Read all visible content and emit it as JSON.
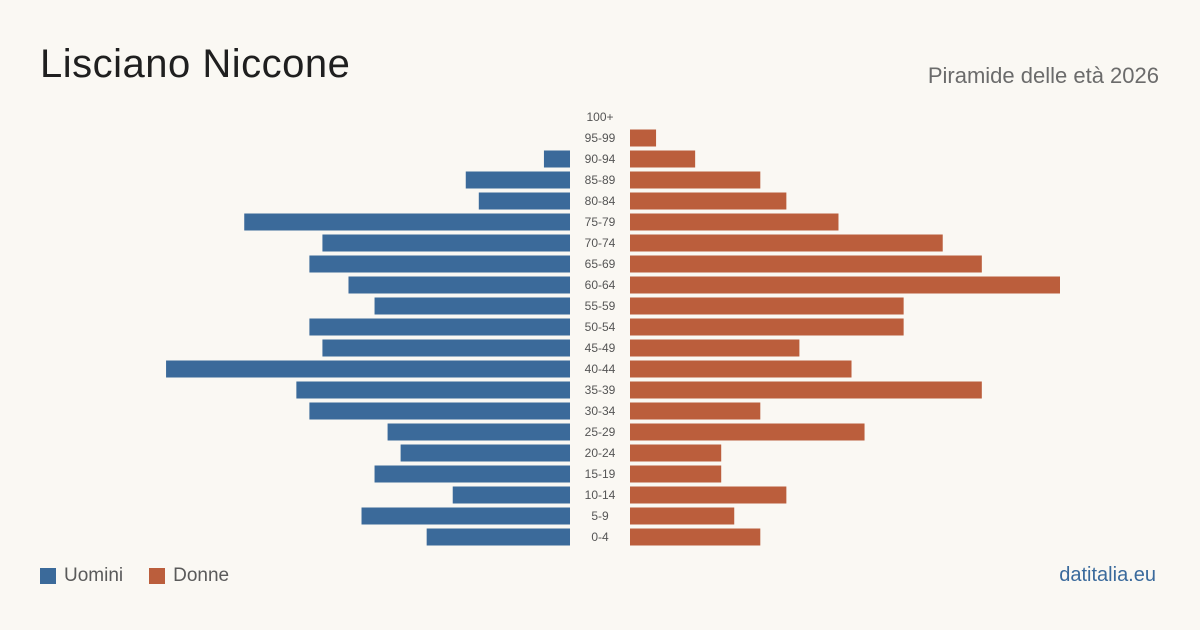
{
  "header": {
    "title": "Lisciano Niccone",
    "subtitle": "Piramide delle età 2026"
  },
  "footer": {
    "source": "datitalia.eu"
  },
  "colors": {
    "men": "#3b6a9a",
    "women": "#bb5e3c",
    "label": "#555555"
  },
  "chart_data": {
    "type": "bar",
    "categories": [
      "100+",
      "95-99",
      "90-94",
      "85-89",
      "80-84",
      "75-79",
      "70-74",
      "65-69",
      "60-64",
      "55-59",
      "50-54",
      "45-49",
      "40-44",
      "35-39",
      "30-34",
      "25-29",
      "20-24",
      "15-19",
      "10-14",
      "5-9",
      "0-4"
    ],
    "series": [
      {
        "name": "Uomini",
        "values": [
          0,
          0,
          2,
          8,
          7,
          25,
          19,
          20,
          17,
          15,
          20,
          19,
          31,
          21,
          20,
          14,
          13,
          15,
          9,
          16,
          11
        ]
      },
      {
        "name": "Donne",
        "values": [
          0,
          2,
          5,
          10,
          12,
          16,
          24,
          27,
          33,
          21,
          21,
          13,
          17,
          27,
          10,
          18,
          7,
          7,
          12,
          8,
          10
        ]
      }
    ],
    "xlim": [
      0,
      33
    ],
    "legend": "bottom-left"
  }
}
